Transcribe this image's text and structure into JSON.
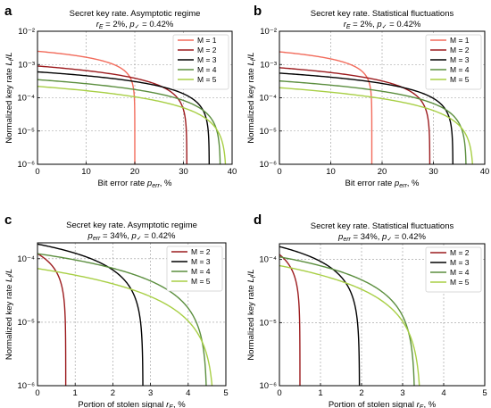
{
  "colors": {
    "M1": "#f26b5b",
    "M2": "#9c1b1e",
    "M3": "#000000",
    "M4": "#5b8e3e",
    "M5": "#a8cf45"
  },
  "legend_labels": {
    "M1": "M = 1",
    "M2": "M = 2",
    "M3": "M = 3",
    "M4": "M = 4",
    "M5": "M = 5"
  },
  "y_tick_labels": [
    "10⁻⁶",
    "10⁻⁵",
    "10⁻⁴",
    "10⁻³",
    "10⁻²"
  ],
  "chart_data": [
    {
      "panel": "a",
      "type": "line",
      "title": "Secret key rate. Asymptotic regime",
      "subtitle": "r_E = 2%, p✓ = 0.42%",
      "xlabel": "Bit error rate p_err, %",
      "ylabel": "Normalized key rate L_f/L",
      "xlim": [
        0,
        40
      ],
      "ylim_log10": [
        -6,
        -2
      ],
      "xticks": [
        0,
        10,
        20,
        30,
        40
      ],
      "yticks": [
        -6,
        -5,
        -4,
        -3,
        -2
      ],
      "legend": "top-right",
      "series": [
        {
          "name": "M = 1",
          "key": "M1",
          "y0": 0.0025,
          "xc": 20.0,
          "alpha": 0.6
        },
        {
          "name": "M = 2",
          "key": "M2",
          "y0": 0.0009,
          "xc": 30.7,
          "alpha": 0.8
        },
        {
          "name": "M = 3",
          "key": "M3",
          "y0": 0.0006,
          "xc": 35.3,
          "alpha": 0.8
        },
        {
          "name": "M = 4",
          "key": "M4",
          "y0": 0.00035,
          "xc": 37.6,
          "alpha": 0.9
        },
        {
          "name": "M = 5",
          "key": "M5",
          "y0": 0.00022,
          "xc": 38.8,
          "alpha": 1.0
        }
      ]
    },
    {
      "panel": "b",
      "type": "line",
      "title": "Secret key rate. Statistical fluctuations",
      "subtitle": "r_E = 2%, p✓ = 0.42%",
      "xlabel": "Bit error rate p_err, %",
      "ylabel": "Normalized key rate L_f/L",
      "xlim": [
        0,
        40
      ],
      "ylim_log10": [
        -6,
        -2
      ],
      "xticks": [
        0,
        10,
        20,
        30,
        40
      ],
      "yticks": [
        -6,
        -5,
        -4,
        -3,
        -2
      ],
      "legend": "top-right",
      "series": [
        {
          "name": "M = 1",
          "key": "M1",
          "y0": 0.0024,
          "xc": 18.0,
          "alpha": 0.6
        },
        {
          "name": "M = 2",
          "key": "M2",
          "y0": 0.0008,
          "xc": 29.3,
          "alpha": 0.8
        },
        {
          "name": "M = 3",
          "key": "M3",
          "y0": 0.00055,
          "xc": 33.8,
          "alpha": 0.8
        },
        {
          "name": "M = 4",
          "key": "M4",
          "y0": 0.00032,
          "xc": 36.4,
          "alpha": 0.9
        },
        {
          "name": "M = 5",
          "key": "M5",
          "y0": 0.0002,
          "xc": 37.8,
          "alpha": 1.0
        }
      ]
    },
    {
      "panel": "c",
      "type": "line",
      "title": "Secret key rate. Asymptotic regime",
      "subtitle": "p_err = 34%, p✓ = 0.42%",
      "xlabel": "Portion of stolen signal r_E, %",
      "ylabel": "Normalized key rate L_f/L",
      "xlim": [
        0,
        5
      ],
      "ylim_log10": [
        -6,
        -3.75
      ],
      "xticks": [
        0,
        1,
        2,
        3,
        4,
        5
      ],
      "yticks": [
        -6,
        -5,
        -4
      ],
      "legend": "top-right",
      "series": [
        {
          "name": "M = 2",
          "key": "M2",
          "y0": 0.00012,
          "xc": 0.75,
          "alpha": 0.6
        },
        {
          "name": "M = 3",
          "key": "M3",
          "y0": 0.00017,
          "xc": 2.8,
          "alpha": 0.75
        },
        {
          "name": "M = 4",
          "key": "M4",
          "y0": 0.00012,
          "xc": 4.5,
          "alpha": 0.9
        },
        {
          "name": "M = 5",
          "key": "M5",
          "y0": 7e-05,
          "xc": 4.7,
          "alpha": 1.0
        }
      ]
    },
    {
      "panel": "d",
      "type": "line",
      "title": "Secret key rate. Statistical fluctuations",
      "subtitle": "p_err = 34%, p✓ = 0.42%",
      "xlabel": "Portion of stolen signal r_E, %",
      "ylabel": "Normalized key rate L_f/L",
      "xlim": [
        0,
        5
      ],
      "ylim_log10": [
        -6,
        -3.75
      ],
      "xticks": [
        0,
        1,
        2,
        3,
        4,
        5
      ],
      "yticks": [
        -6,
        -5,
        -4
      ],
      "legend": "top-right",
      "series": [
        {
          "name": "M = 2",
          "key": "M2",
          "y0": 0.00012,
          "xc": 0.5,
          "alpha": 0.6
        },
        {
          "name": "M = 3",
          "key": "M3",
          "y0": 0.00016,
          "xc": 1.95,
          "alpha": 0.75
        },
        {
          "name": "M = 4",
          "key": "M4",
          "y0": 0.00011,
          "xc": 3.3,
          "alpha": 0.9
        },
        {
          "name": "M = 5",
          "key": "M5",
          "y0": 8e-05,
          "xc": 3.45,
          "alpha": 1.0
        }
      ]
    }
  ]
}
